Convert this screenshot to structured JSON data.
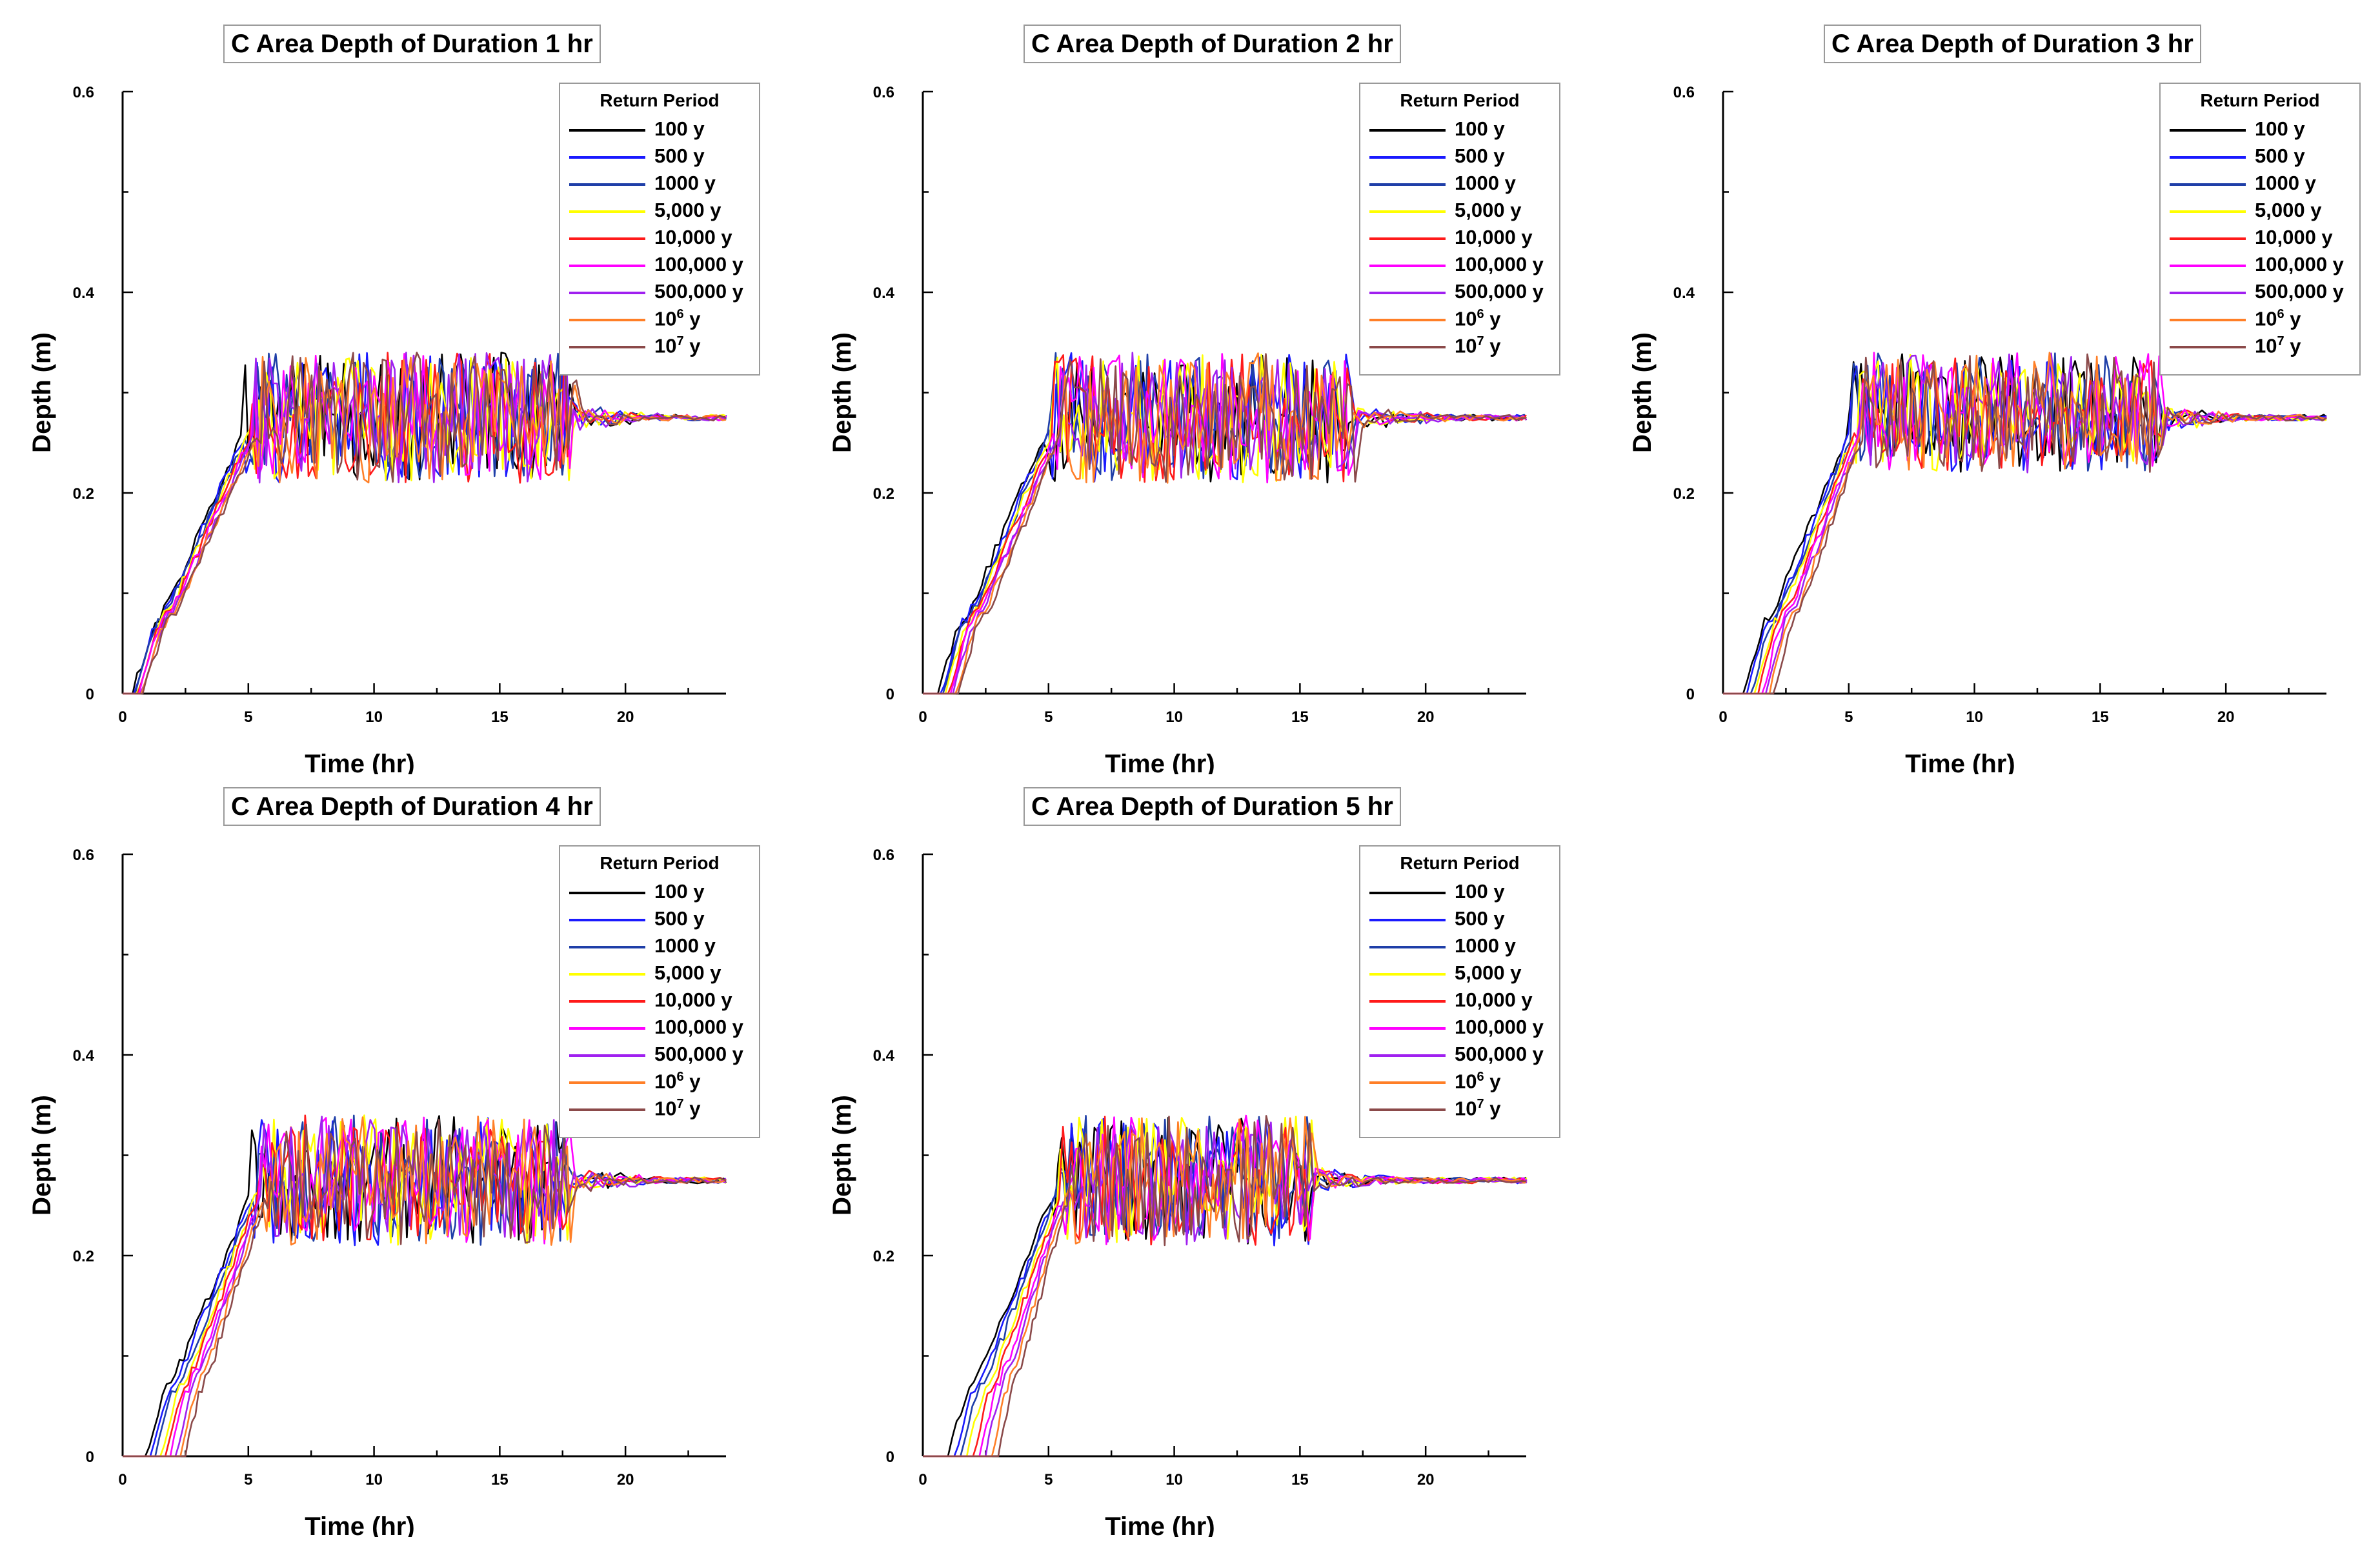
{
  "legend_title": "Return Period",
  "series": [
    {
      "name": "100 y",
      "color": "#000000",
      "sup": ""
    },
    {
      "name": "500 y",
      "color": "#1a1aff",
      "sup": ""
    },
    {
      "name": "1000 y",
      "color": "#1f3fa8",
      "sup": ""
    },
    {
      "name": "5,000 y",
      "color": "#ffff00",
      "sup": ""
    },
    {
      "name": "10,000 y",
      "color": "#ff1a1a",
      "sup": ""
    },
    {
      "name": "100,000 y",
      "color": "#ff00ff",
      "sup": ""
    },
    {
      "name": "500,000 y",
      "color": "#a020f0",
      "sup": ""
    },
    {
      "name": "10",
      "color": "#ff7f27",
      "sup": "6",
      "unit": " y"
    },
    {
      "name": "10",
      "color": "#8b4a4a",
      "sup": "7",
      "unit": " y"
    }
  ],
  "axes": {
    "xlabel": "Time (hr)",
    "ylabel": "Depth (m)",
    "xticks": [
      "0",
      "5",
      "10",
      "15",
      "20"
    ],
    "yticks": [
      "0",
      "0.2",
      "0.4",
      "0.6"
    ],
    "xlim": [
      0,
      24
    ],
    "ylim": [
      0,
      0.6
    ]
  },
  "chart_data": [
    {
      "type": "line",
      "title": "C Area Depth of Duration 1 hr",
      "duration_hr": 1,
      "onset_hr": 0.4,
      "peak_end_hr": 17.5,
      "plateau_min": 0.2,
      "plateau_max": 0.34,
      "steady_value": 0.275,
      "xlim": [
        0,
        24
      ],
      "ylim": [
        0,
        0.6
      ]
    },
    {
      "type": "line",
      "title": "C Area Depth of Duration 2 hr",
      "duration_hr": 2,
      "onset_hr": 0.6,
      "peak_end_hr": 18.0,
      "plateau_min": 0.2,
      "plateau_max": 0.34,
      "steady_value": 0.275,
      "xlim": [
        0,
        24
      ],
      "ylim": [
        0,
        0.6
      ]
    },
    {
      "type": "line",
      "title": "C Area Depth of Duration 3 hr",
      "duration_hr": 3,
      "onset_hr": 0.8,
      "peak_end_hr": 17.5,
      "plateau_min": 0.21,
      "plateau_max": 0.34,
      "steady_value": 0.275,
      "xlim": [
        0,
        24
      ],
      "ylim": [
        0,
        0.6
      ]
    },
    {
      "type": "line",
      "title": "C Area Depth of Duration 4 hr",
      "duration_hr": 4,
      "onset_hr": 0.9,
      "peak_end_hr": 17.0,
      "plateau_min": 0.2,
      "plateau_max": 0.34,
      "steady_value": 0.275,
      "xlim": [
        0,
        24
      ],
      "ylim": [
        0,
        0.6
      ]
    },
    {
      "type": "line",
      "title": "C Area Depth of Duration 5 hr",
      "duration_hr": 5,
      "onset_hr": 1.0,
      "peak_end_hr": 16.0,
      "plateau_min": 0.2,
      "plateau_max": 0.34,
      "steady_value": 0.275,
      "xlim": [
        0,
        24
      ],
      "ylim": [
        0,
        0.6
      ]
    }
  ]
}
